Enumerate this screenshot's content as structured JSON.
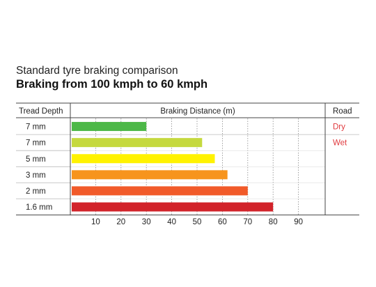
{
  "chart_data": {
    "type": "bar",
    "orientation": "horizontal",
    "subtitle": "Standard tyre braking comparison",
    "title": "Braking from 100 kmph to 60 kmph",
    "columns": {
      "tread_depth": "Tread Depth",
      "braking_distance": "Braking Distance (m)",
      "road": "Road"
    },
    "categories": [
      "7 mm",
      "7 mm",
      "5 mm",
      "3 mm",
      "2 mm",
      "1.6 mm"
    ],
    "values": [
      30,
      52,
      57,
      62,
      70,
      80
    ],
    "bar_colors": [
      "#4db848",
      "#c5d93e",
      "#fff200",
      "#f7941d",
      "#f15a29",
      "#d2232a"
    ],
    "xlim": [
      0,
      100
    ],
    "xticks": [
      10,
      20,
      30,
      40,
      50,
      60,
      70,
      80,
      90
    ],
    "road_labels": [
      {
        "label": "Dry",
        "row": 0
      },
      {
        "label": "Wet",
        "row": 1
      }
    ],
    "road_color": "#e03a3e",
    "grid": "dotted vertical"
  }
}
